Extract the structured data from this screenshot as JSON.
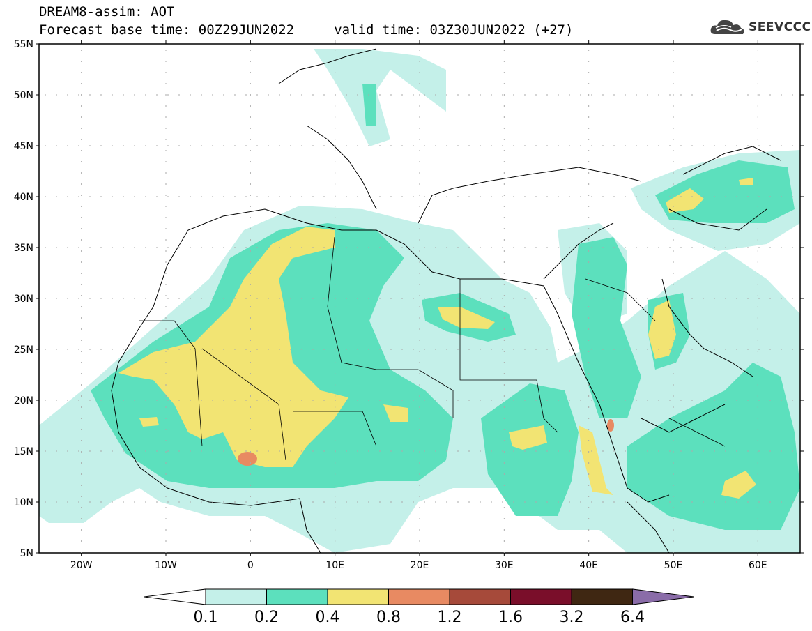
{
  "header": {
    "line1": "DREAM8-assim: AOT",
    "line2": "Forecast base time: 00Z29JUN2022     valid time: 03Z30JUN2022 (+27)",
    "brand": "SEEVCCC"
  },
  "map": {
    "lon_range": [
      -25,
      65
    ],
    "lat_range": [
      5,
      55
    ],
    "lat_ticks": [
      {
        "lat": 55,
        "label": "55N"
      },
      {
        "lat": 50,
        "label": "50N"
      },
      {
        "lat": 45,
        "label": "45N"
      },
      {
        "lat": 40,
        "label": "40N"
      },
      {
        "lat": 35,
        "label": "35N"
      },
      {
        "lat": 30,
        "label": "30N"
      },
      {
        "lat": 25,
        "label": "25N"
      },
      {
        "lat": 20,
        "label": "20N"
      },
      {
        "lat": 15,
        "label": "15N"
      },
      {
        "lat": 10,
        "label": "10N"
      },
      {
        "lat": 5,
        "label": "5N"
      }
    ],
    "lon_ticks": [
      {
        "lon": -20,
        "label": "20W"
      },
      {
        "lon": -10,
        "label": "10W"
      },
      {
        "lon": 0,
        "label": "0"
      },
      {
        "lon": 10,
        "label": "10E"
      },
      {
        "lon": 20,
        "label": "20E"
      },
      {
        "lon": 30,
        "label": "30E"
      },
      {
        "lon": 40,
        "label": "40E"
      },
      {
        "lon": 50,
        "label": "50E"
      },
      {
        "lon": 60,
        "label": "60E"
      }
    ]
  },
  "colorbar": {
    "under_color": "#ffffff",
    "over_color": "#8a6ca8",
    "bins": [
      {
        "color": "#c4f0e9"
      },
      {
        "color": "#5ce0bd"
      },
      {
        "color": "#f2e473"
      },
      {
        "color": "#e88a62"
      },
      {
        "color": "#a64a3a"
      },
      {
        "color": "#7a0e2a"
      },
      {
        "color": "#3f2712"
      }
    ],
    "labels": [
      "0.1",
      "0.2",
      "0.4",
      "0.8",
      "1.2",
      "1.6",
      "3.2",
      "6.4"
    ]
  },
  "icons": {
    "brand_logo": "cloud-logo-icon"
  }
}
